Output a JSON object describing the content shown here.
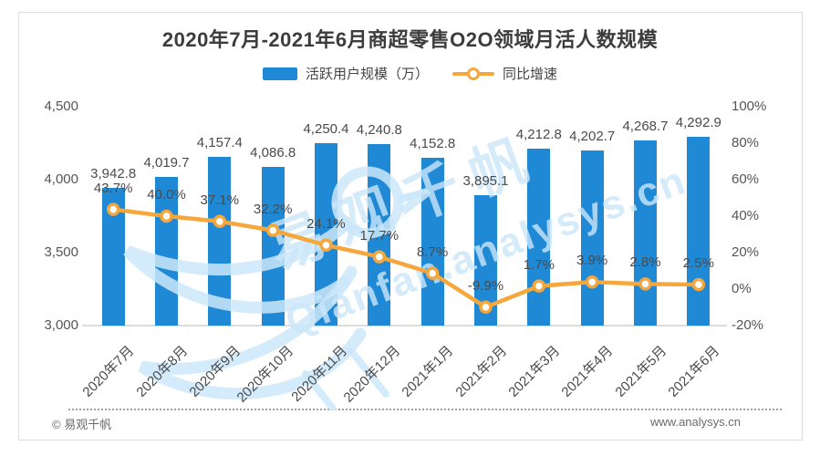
{
  "title": "2020年7月-2021年6月商超零售O2O领域月活人数规模",
  "legend": {
    "bars_label": "活跃用户规模（万）",
    "line_label": "同比增速"
  },
  "footer": {
    "copyright": "© 易观千帆",
    "website": "www.analysys.cn"
  },
  "watermark": {
    "text_cn": "易观千帆",
    "text_en": "Qianfan.analysys.cn",
    "color": "rgba(202,230,249,0.8)"
  },
  "colors": {
    "bar": "#2089D5",
    "line": "#F6A73C",
    "label": "#4a4a4a",
    "axis": "#555555",
    "baseline": "#dcdcdc"
  },
  "chart_data": {
    "type": "bar",
    "subtype": "bar+line dual axis",
    "title": "2020年7月-2021年6月商超零售O2O领域月活人数规模",
    "categories": [
      "2020年7月",
      "2020年8月",
      "2020年9月",
      "2020年10月",
      "2020年11月",
      "2020年12月",
      "2021年1月",
      "2021年2月",
      "2021年3月",
      "2021年4月",
      "2021年5月",
      "2021年6月"
    ],
    "series": [
      {
        "name": "活跃用户规模（万）",
        "type": "bar",
        "axis": "left",
        "values": [
          3942.8,
          4019.7,
          4157.4,
          4086.8,
          4250.4,
          4240.8,
          4152.8,
          3895.1,
          4212.8,
          4202.7,
          4268.7,
          4292.9
        ],
        "labels": [
          "3,942.8",
          "4,019.7",
          "4,157.4",
          "4,086.8",
          "4,250.4",
          "4,240.8",
          "4,152.8",
          "3,895.1",
          "4,212.8",
          "4,202.7",
          "4,268.7",
          "4,292.9"
        ],
        "color": "#2089D5"
      },
      {
        "name": "同比增速",
        "type": "line",
        "axis": "right",
        "values": [
          43.7,
          40.0,
          37.1,
          32.2,
          24.1,
          17.7,
          8.7,
          -9.9,
          1.7,
          3.9,
          2.8,
          2.5
        ],
        "labels": [
          "43.7%",
          "40.0%",
          "37.1%",
          "32.2%",
          "24.1%",
          "17.7%",
          "8.7%",
          "-9.9%",
          "1.7%",
          "3.9%",
          "2.8%",
          "2.5%"
        ],
        "color": "#F6A73C"
      }
    ],
    "left_axis": {
      "min": 3000,
      "max": 4500,
      "ticks": [
        {
          "label": "4,500",
          "value": 4500
        },
        {
          "label": "4,000",
          "value": 4000
        },
        {
          "label": "3,500",
          "value": 3500
        },
        {
          "label": "3,000",
          "value": 3000
        }
      ]
    },
    "right_axis": {
      "min": -20,
      "max": 100,
      "ticks": [
        {
          "label": "100%",
          "value": 100
        },
        {
          "label": "80%",
          "value": 80
        },
        {
          "label": "60%",
          "value": 60
        },
        {
          "label": "40%",
          "value": 40
        },
        {
          "label": "20%",
          "value": 20
        },
        {
          "label": "0%",
          "value": 0
        },
        {
          "label": "-20%",
          "value": -20
        }
      ]
    },
    "grid": false,
    "legend_position": "top center"
  }
}
